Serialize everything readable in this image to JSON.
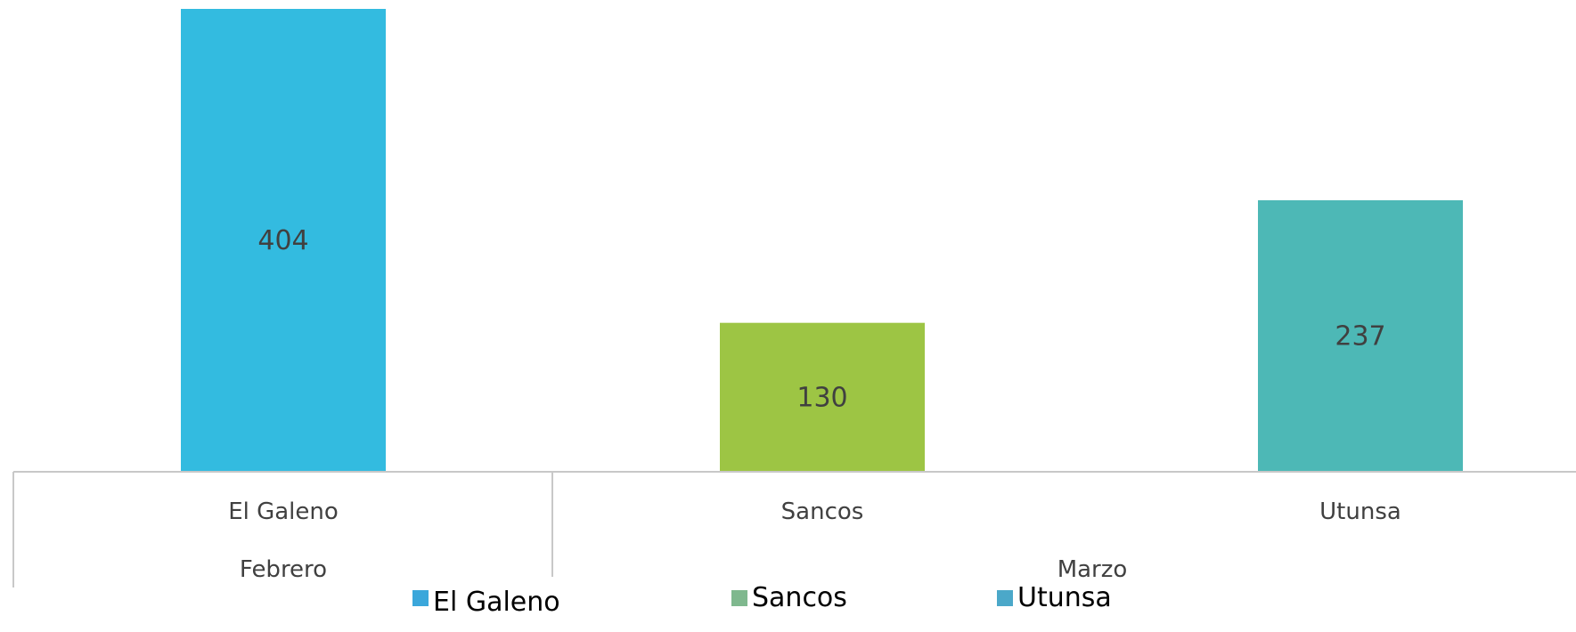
{
  "chart_data": {
    "type": "bar",
    "categories": [
      "El Galeno",
      "Sancos",
      "Utunsa"
    ],
    "groups": [
      {
        "label": "Febrero",
        "categories": [
          "El Galeno"
        ]
      },
      {
        "label": "Marzo",
        "categories": [
          "Sancos",
          "Utunsa"
        ]
      }
    ],
    "series": [
      {
        "name": "El Galeno",
        "values": [
          404,
          null,
          null
        ],
        "color": "#33BBE0"
      },
      {
        "name": "Sancos",
        "values": [
          null,
          130,
          null
        ],
        "color": "#9DC544"
      },
      {
        "name": "Utunsa",
        "values": [
          null,
          null,
          237
        ],
        "color": "#4DB8B6"
      }
    ],
    "data_labels": [
      "404",
      "130",
      "237"
    ],
    "legend": {
      "position": "bottom",
      "items": [
        "El Galeno",
        "Sancos",
        "Utunsa"
      ]
    },
    "legend_swatch_colors": [
      "#3BA7DB",
      "#7FB88E",
      "#4BA8C9"
    ],
    "ylim": [
      0,
      404
    ],
    "grid": false,
    "title": "",
    "xlabel": "",
    "ylabel": ""
  }
}
